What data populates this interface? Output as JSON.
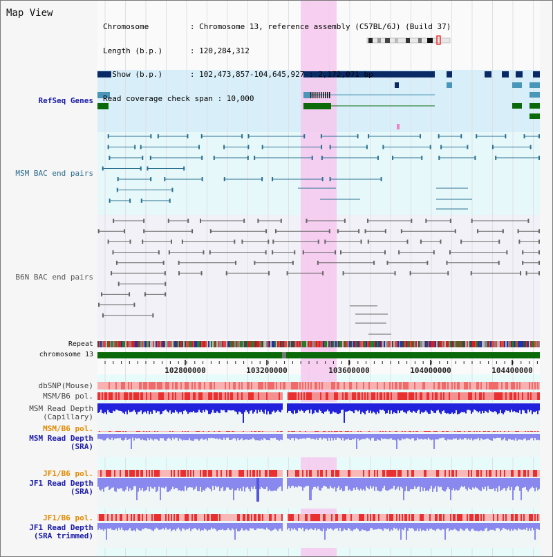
{
  "header": {
    "title": "Map View",
    "info_lines": [
      "Chromosome         : Chromosome 13, reference assembly (C57BL/6J) (Build 37)",
      "Length (b.p.)      : 120,284,312",
      "  Show (b.p.)      : 102,473,857-104,645,927 : 2,172,071 bp",
      "Read coverage check span : 10,000"
    ]
  },
  "tracks": {
    "refseq": "RefSeq Genes",
    "msm_bac": "MSM BAC end pairs",
    "b6n_bac": "B6N BAC end pairs",
    "repeat": "Repeat",
    "chromosome": "chromosome 13",
    "dbsnp": "dbSNP(Mouse)",
    "msm_b6_pol_1": "MSM/B6 pol.",
    "msm_depth_cap": "MSM Read Depth\n(Capillary)",
    "msm_b6_pol_2": "MSM/B6 pol.",
    "msm_depth_sra": "MSM Read Depth\n(SRA)",
    "jf1_b6_pol_1": "JF1/B6 pol.",
    "jf1_depth_sra": "JF1 Read Depth\n(SRA)",
    "jf1_b6_pol_2": "JF1/B6 pol.",
    "jf1_depth_trim": "JF1 Read Depth\n(SRA trimmed)"
  },
  "axis": {
    "ticks": [
      "102800000",
      "103200000",
      "103600000",
      "104000000",
      "104400000"
    ]
  },
  "colors": {
    "highlight": "#f6c8ee",
    "refseq_bg": "#d8eef8",
    "bac_bg": "#e6f8fa",
    "gene_dark": "#0a2a66",
    "gene_light": "#4a96b8",
    "gene_green": "#0a6a0a",
    "msm_pair": "#2a7090",
    "b6n_pair": "#666666",
    "chrom": "#0a6a0a",
    "pol_red": "#e83030",
    "depth_blue": "#2222dd",
    "depth_light": "#8888ee"
  }
}
